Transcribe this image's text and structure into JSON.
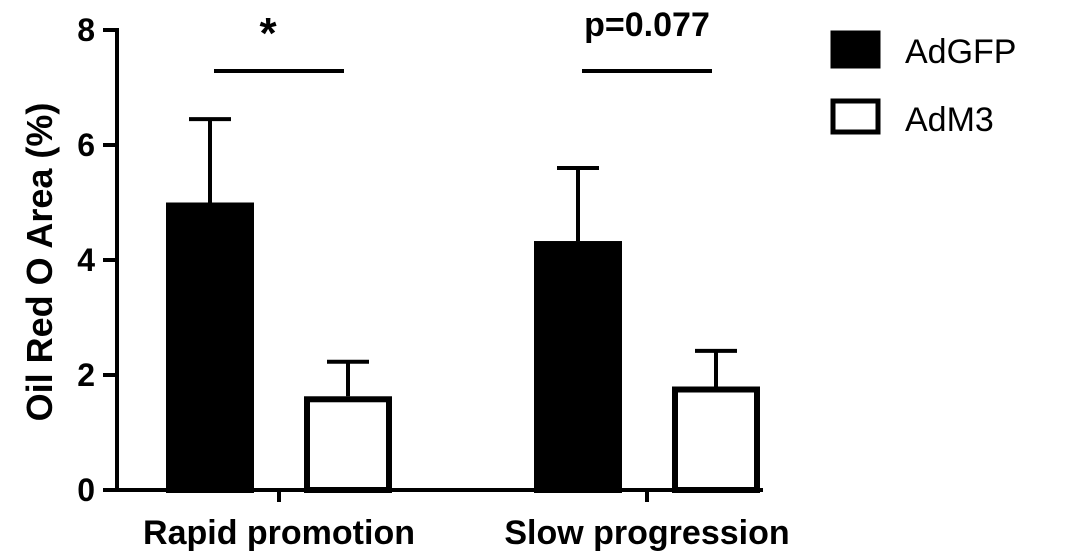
{
  "chart_data": {
    "type": "bar",
    "categories": [
      "Rapid promotion",
      "Slow progression"
    ],
    "series": [
      {
        "name": "AdGFP",
        "values": [
          5.0,
          4.33
        ],
        "errors": [
          1.45,
          1.27
        ],
        "fill": "#000000"
      },
      {
        "name": "AdM3",
        "values": [
          1.63,
          1.8
        ],
        "errors": [
          0.6,
          0.62
        ],
        "fill": "#ffffff"
      }
    ],
    "title": "",
    "xlabel": "",
    "ylabel": "Oil Red O Area (%)",
    "ylim": [
      0,
      8
    ],
    "yticks": [
      "0",
      "2",
      "4",
      "6",
      "8"
    ],
    "error_bars": "one-sided (upper)",
    "significance": [
      {
        "category": "Rapid promotion",
        "label": "*"
      },
      {
        "category": "Slow progression",
        "label": "p=0.077"
      }
    ],
    "legend_position": "top-right",
    "grid": false
  }
}
